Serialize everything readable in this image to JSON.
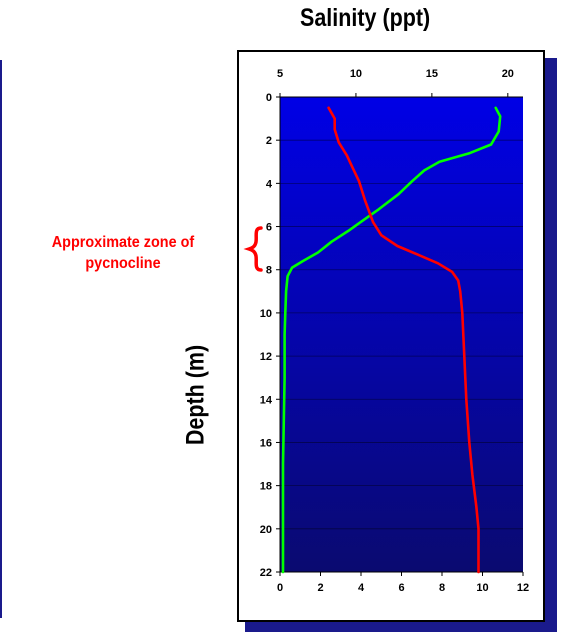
{
  "title": "Salinity (ppt)",
  "ylabel": "Depth (m)",
  "annotation": {
    "line1": "Approximate zone of",
    "line2": "pycnocline"
  },
  "colors": {
    "plot_top": "#0000e6",
    "plot_bottom": "#0a0a70",
    "salinity": "#00ff00",
    "second": "#ff0000",
    "annotation": "#ff0000"
  },
  "chart_data": {
    "type": "line",
    "title": "Salinity (ppt)",
    "ylabel": "Depth (m)",
    "y_axis": {
      "range": [
        0,
        22
      ],
      "ticks": [
        0,
        2,
        4,
        6,
        8,
        10,
        12,
        14,
        16,
        18,
        20,
        22
      ],
      "inverted": true
    },
    "x_top": {
      "range": [
        5,
        21
      ],
      "ticks": [
        5,
        10,
        15,
        20
      ]
    },
    "x_bottom": {
      "range": [
        0,
        12
      ],
      "ticks": [
        0,
        2,
        4,
        6,
        8,
        10,
        12
      ]
    },
    "grid": "horizontal",
    "series": [
      {
        "axis": "top",
        "color": "#00ff00",
        "points": [
          [
            19.2,
            0.5
          ],
          [
            19.5,
            0.9
          ],
          [
            19.4,
            1.6
          ],
          [
            18.9,
            2.2
          ],
          [
            17.5,
            2.6
          ],
          [
            15.5,
            3.0
          ],
          [
            14.5,
            3.4
          ],
          [
            13.7,
            3.9
          ],
          [
            12.8,
            4.5
          ],
          [
            11.5,
            5.2
          ],
          [
            10.3,
            5.8
          ],
          [
            9.5,
            6.2
          ],
          [
            8.4,
            6.7
          ],
          [
            7.5,
            7.2
          ],
          [
            6.5,
            7.6
          ],
          [
            5.8,
            7.9
          ],
          [
            5.5,
            8.3
          ],
          [
            5.4,
            9.0
          ],
          [
            5.35,
            10.0
          ],
          [
            5.3,
            11.0
          ],
          [
            5.3,
            13.0
          ],
          [
            5.25,
            15.0
          ],
          [
            5.2,
            17.0
          ],
          [
            5.2,
            19.0
          ],
          [
            5.2,
            22.0
          ]
        ]
      },
      {
        "axis": "bottom",
        "color": "#ff0000",
        "points": [
          [
            2.4,
            0.5
          ],
          [
            2.7,
            1.0
          ],
          [
            2.7,
            1.5
          ],
          [
            2.9,
            2.1
          ],
          [
            3.3,
            2.7
          ],
          [
            3.6,
            3.3
          ],
          [
            3.9,
            3.9
          ],
          [
            4.2,
            4.8
          ],
          [
            4.6,
            5.8
          ],
          [
            5.0,
            6.4
          ],
          [
            5.8,
            6.9
          ],
          [
            6.8,
            7.3
          ],
          [
            7.8,
            7.7
          ],
          [
            8.5,
            8.1
          ],
          [
            8.8,
            8.5
          ],
          [
            8.9,
            9.0
          ],
          [
            9.0,
            10.0
          ],
          [
            9.1,
            12.0
          ],
          [
            9.2,
            14.0
          ],
          [
            9.35,
            16.0
          ],
          [
            9.5,
            17.5
          ],
          [
            9.7,
            19.0
          ],
          [
            9.8,
            20.0
          ],
          [
            9.8,
            22.0
          ]
        ]
      }
    ]
  }
}
